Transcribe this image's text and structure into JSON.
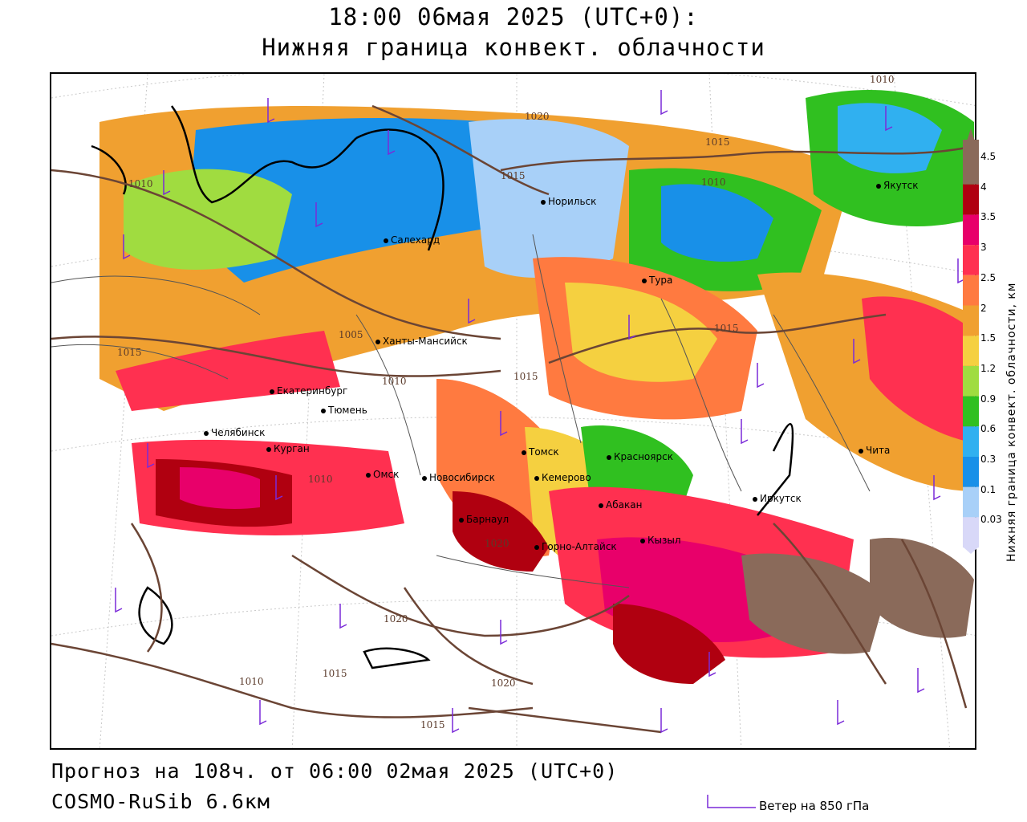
{
  "header": {
    "title_line1": "18:00 06мая 2025 (UTC+0):",
    "title_line2": "Нижняя граница конвект. облачности"
  },
  "footer": {
    "forecast": "Прогноз на 108ч. от 06:00 02мая 2025 (UTC+0)",
    "model": "COSMO-RuSib 6.6км",
    "wind_legend": "Ветер на 850 гПа"
  },
  "colorbar": {
    "title": "Нижняя граница конвект. облачности, км",
    "levels": [
      {
        "label": "4.5",
        "color": "#8a6a5a"
      },
      {
        "label": "4",
        "color": "#b00010"
      },
      {
        "label": "3.5",
        "color": "#e8006a"
      },
      {
        "label": "3",
        "color": "#ff3050"
      },
      {
        "label": "2.5",
        "color": "#ff7a40"
      },
      {
        "label": "2",
        "color": "#f0a030"
      },
      {
        "label": "1.5",
        "color": "#f5d040"
      },
      {
        "label": "1.2",
        "color": "#a0dc40"
      },
      {
        "label": "0.9",
        "color": "#30c020"
      },
      {
        "label": "0.6",
        "color": "#30b0f0"
      },
      {
        "label": "0.3",
        "color": "#1890e8"
      },
      {
        "label": "0.1",
        "color": "#a8d0f8"
      },
      {
        "label": "0.03",
        "color": "#d8d8f8"
      }
    ]
  },
  "cities": [
    {
      "name": "Норильск"
    },
    {
      "name": "Якутск"
    },
    {
      "name": "Салехард"
    },
    {
      "name": "Тура"
    },
    {
      "name": "Ханты-Мансийск"
    },
    {
      "name": "Екатеринбург"
    },
    {
      "name": "Тюмень"
    },
    {
      "name": "Челябинск"
    },
    {
      "name": "Курган"
    },
    {
      "name": "Омск"
    },
    {
      "name": "Новосибирск"
    },
    {
      "name": "Томск"
    },
    {
      "name": "Кемерово"
    },
    {
      "name": "Красноярск"
    },
    {
      "name": "Абакан"
    },
    {
      "name": "Барнаул"
    },
    {
      "name": "Горно-Алтайск"
    },
    {
      "name": "Кызыл"
    },
    {
      "name": "Иркутск"
    },
    {
      "name": "Чита"
    }
  ],
  "isobars": [
    "1010",
    "1020",
    "1015",
    "1015",
    "1010",
    "1010",
    "1015",
    "1005",
    "1010",
    "1015",
    "1015",
    "1010",
    "1020",
    "1020",
    "1015",
    "1010",
    "1020",
    "1015"
  ]
}
